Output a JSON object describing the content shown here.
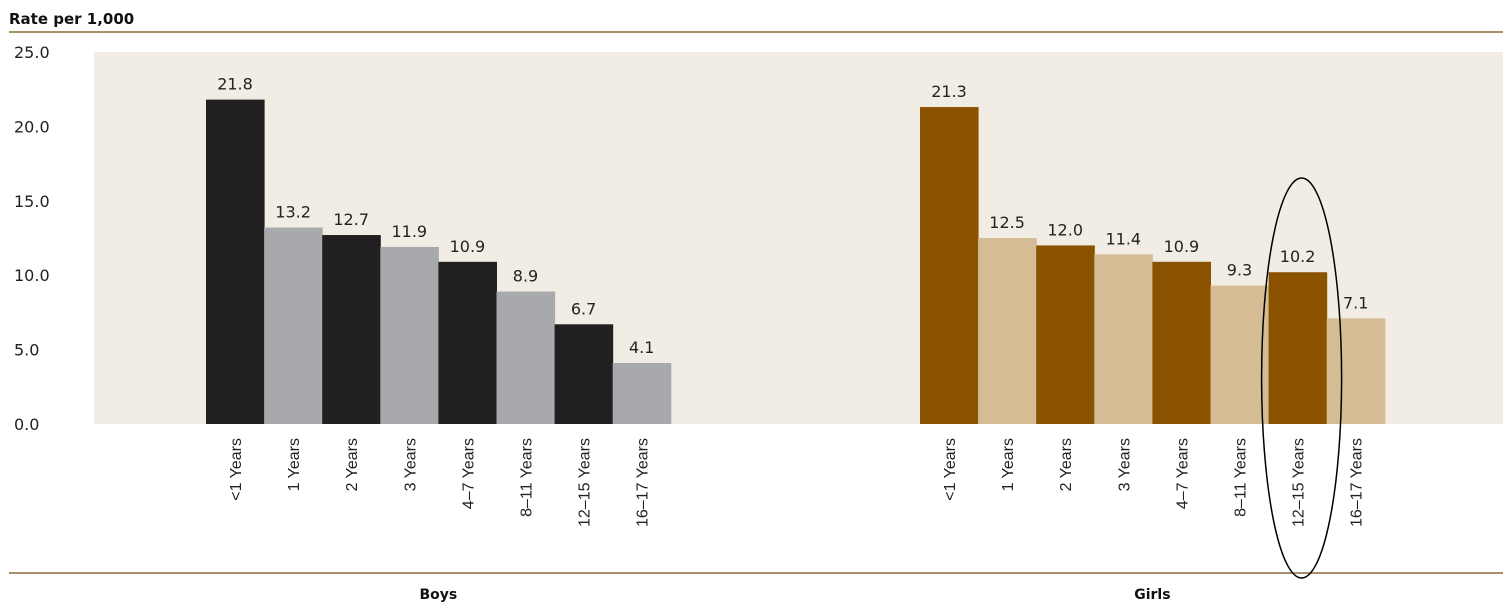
{
  "chart_data": {
    "type": "bar",
    "ylabel": "Rate per 1,000",
    "ylim": [
      0,
      25
    ],
    "yticks": [
      "0.0",
      "5.0",
      "10.0",
      "15.0",
      "20.0",
      "25.0"
    ],
    "groups": [
      {
        "name": "Boys",
        "categories": [
          "<1 Years",
          "1 Years",
          "2 Years",
          "3 Years",
          "4–7 Years",
          "8–11 Years",
          "12–15 Years",
          "16–17 Years"
        ],
        "values": [
          21.8,
          13.2,
          12.7,
          11.9,
          10.9,
          8.9,
          6.7,
          4.1
        ],
        "labels": [
          "21.8",
          "13.2",
          "12.7",
          "11.9",
          "10.9",
          "8.9",
          "6.7",
          "4.1"
        ],
        "colors": [
          "#221f20",
          "#a7a9ac"
        ]
      },
      {
        "name": "Girls",
        "categories": [
          "<1 Years",
          "1 Years",
          "2 Years",
          "3 Years",
          "4–7 Years",
          "8–11 Years",
          "12–15 Years",
          "16–17 Years"
        ],
        "values": [
          21.3,
          12.5,
          12.0,
          11.4,
          10.9,
          9.3,
          10.2,
          7.1
        ],
        "labels": [
          "21.3",
          "12.5",
          "12.0",
          "11.4",
          "10.9",
          "9.3",
          "10.2",
          "7.1"
        ],
        "colors": [
          "#8b5200",
          "#d5bc94"
        ]
      }
    ],
    "highlight": {
      "group": "Girls",
      "category": "12–15 Years",
      "shape": "ellipse"
    },
    "plot_background": "#f1ede4",
    "rule_color": "#8a6a3a"
  }
}
